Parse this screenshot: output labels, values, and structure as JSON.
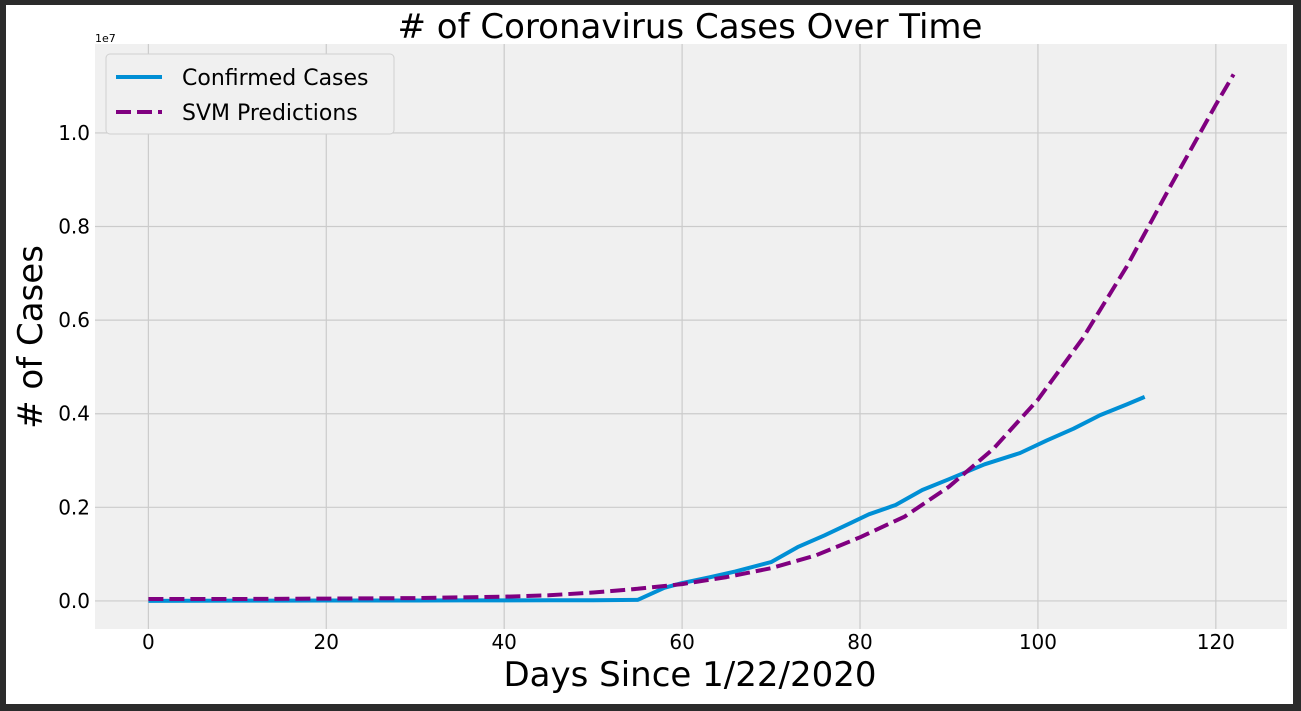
{
  "chart_data": {
    "type": "line",
    "title": "# of Coronavirus Cases Over Time",
    "xlabel": "Days Since 1/22/2020",
    "ylabel": "# of Cases",
    "y_offset_label": "1e7",
    "xlim": [
      -6,
      128
    ],
    "ylim": [
      -0.06,
      1.19
    ],
    "y_scale": 10000000,
    "x_ticks": [
      0,
      20,
      40,
      60,
      80,
      100,
      120
    ],
    "x_tick_labels": [
      "0",
      "20",
      "40",
      "60",
      "80",
      "100",
      "120"
    ],
    "y_ticks": [
      0.0,
      0.2,
      0.4,
      0.6,
      0.8,
      1.0
    ],
    "y_tick_labels": [
      "0.0",
      "0.2",
      "0.4",
      "0.6",
      "0.8",
      "1.0"
    ],
    "grid": true,
    "legend_position": "top-left",
    "series": [
      {
        "name": "Confirmed Cases",
        "color": "#008fd5",
        "style": "solid",
        "x": [
          0,
          5,
          10,
          15,
          20,
          25,
          30,
          35,
          40,
          45,
          50,
          55,
          58,
          60,
          63,
          66,
          70,
          73,
          76,
          79,
          81,
          84,
          87,
          90,
          94,
          98,
          101,
          104,
          107,
          110,
          112
        ],
        "y": [
          0.0,
          0.0003,
          0.0006,
          0.0007,
          0.0008,
          0.0009,
          0.001,
          0.0011,
          0.0012,
          0.0014,
          0.0016,
          0.0021,
          0.028,
          0.038,
          0.05,
          0.063,
          0.083,
          0.115,
          0.14,
          0.167,
          0.185,
          0.205,
          0.237,
          0.26,
          0.292,
          0.316,
          0.343,
          0.368,
          0.397,
          0.42,
          0.436
        ]
      },
      {
        "name": "SVM Predictions",
        "color": "#800080",
        "style": "dashed",
        "x": [
          0,
          10,
          20,
          30,
          40,
          45,
          50,
          55,
          60,
          65,
          70,
          75,
          80,
          85,
          90,
          95,
          100,
          105,
          110,
          115,
          120,
          122
        ],
        "y": [
          0.004,
          0.004,
          0.005,
          0.006,
          0.009,
          0.012,
          0.018,
          0.026,
          0.036,
          0.051,
          0.07,
          0.097,
          0.136,
          0.18,
          0.244,
          0.325,
          0.43,
          0.56,
          0.715,
          0.89,
          1.06,
          1.125
        ]
      }
    ]
  }
}
